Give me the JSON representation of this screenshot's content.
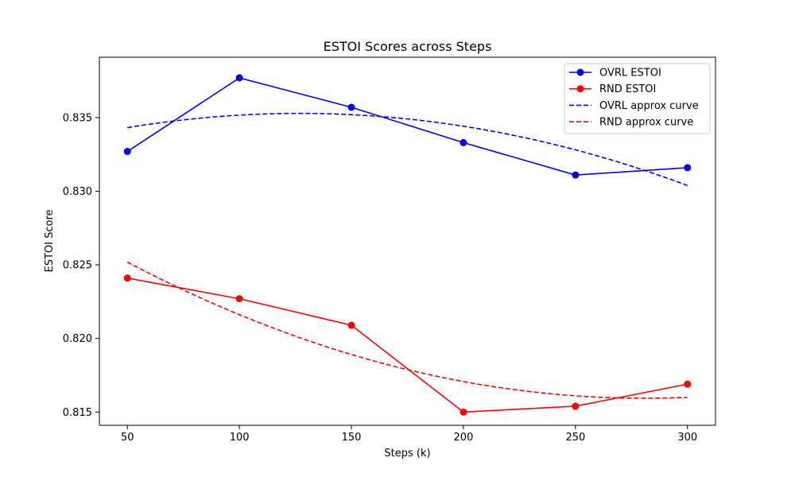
{
  "chart_data": {
    "type": "line",
    "title": "ESTOI Scores across Steps",
    "xlabel": "Steps (k)",
    "ylabel": "ESTOI Score",
    "x": [
      50,
      100,
      150,
      200,
      250,
      300
    ],
    "xlim": [
      37.5,
      312.5
    ],
    "ylim": [
      0.8141,
      0.8391
    ],
    "xticks": [
      50,
      100,
      150,
      200,
      250,
      300
    ],
    "yticks": [
      0.815,
      0.82,
      0.825,
      0.83,
      0.835
    ],
    "ytick_labels": [
      "0.815",
      "0.820",
      "0.825",
      "0.830",
      "0.835"
    ],
    "grid": false,
    "legend_position": "top-right",
    "series": [
      {
        "name": "OVRL ESTOI",
        "style": "solid-marker",
        "color": "#0000ff",
        "values": [
          0.8327,
          0.8377,
          0.8357,
          0.8333,
          0.8311,
          0.8316
        ]
      },
      {
        "name": "RND ESTOI",
        "style": "solid-marker",
        "color": "#ff0000",
        "values": [
          0.8241,
          0.8227,
          0.8209,
          0.815,
          0.8154,
          0.8169
        ]
      },
      {
        "name": "OVRL approx curve",
        "style": "dashed",
        "color": "#0000ff",
        "values": [
          0.8343,
          0.8352,
          0.8352,
          0.8344,
          0.8328,
          0.8304
        ]
      },
      {
        "name": "RND approx curve",
        "style": "dashed",
        "color": "#ff0000",
        "values": [
          0.8252,
          0.8216,
          0.8189,
          0.8171,
          0.8161,
          0.816
        ]
      }
    ]
  }
}
